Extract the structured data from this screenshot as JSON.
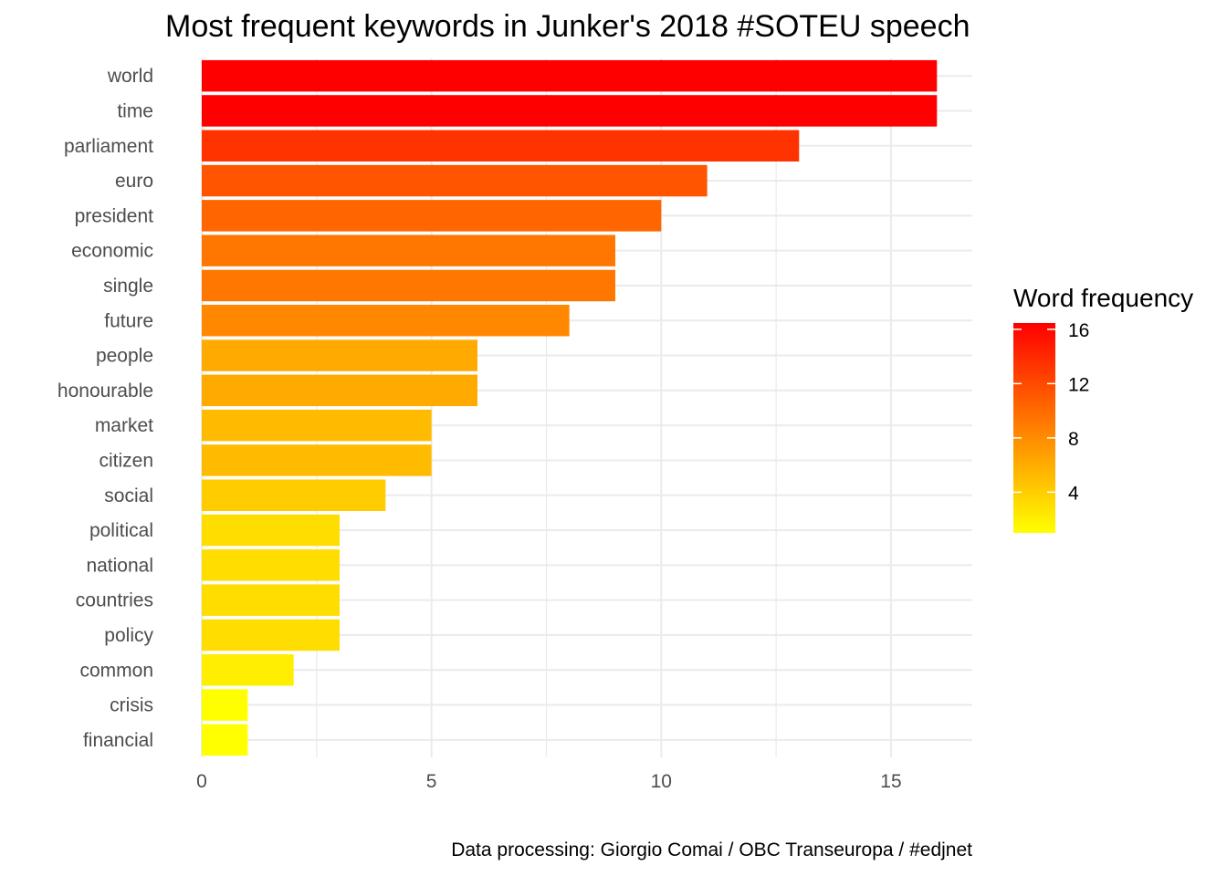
{
  "chart_data": {
    "type": "bar",
    "orientation": "horizontal",
    "title": "Most frequent keywords in Junker's 2018 #SOTEU speech",
    "caption": "Data processing:  Giorgio Comai / OBC Transeuropa / #edjnet",
    "xlabel": "",
    "ylabel": "",
    "xlim": [
      0,
      16.8
    ],
    "x_ticks": [
      0,
      5,
      10,
      15
    ],
    "grid": true,
    "categories": [
      "world",
      "time",
      "parliament",
      "euro",
      "president",
      "economic",
      "single",
      "future",
      "people",
      "honourable",
      "market",
      "citizen",
      "social",
      "political",
      "national",
      "countries",
      "policy",
      "common",
      "crisis",
      "financial"
    ],
    "values": [
      16,
      16,
      13,
      11,
      10,
      9,
      9,
      8,
      6,
      6,
      5,
      5,
      4,
      3,
      3,
      3,
      3,
      2,
      1,
      1
    ],
    "legend": {
      "title": "Word frequency",
      "position": "right",
      "ticks": [
        4,
        8,
        12,
        16
      ],
      "range": [
        1,
        16
      ],
      "color_low": "#ffff00",
      "color_high": "#ff0000"
    }
  }
}
